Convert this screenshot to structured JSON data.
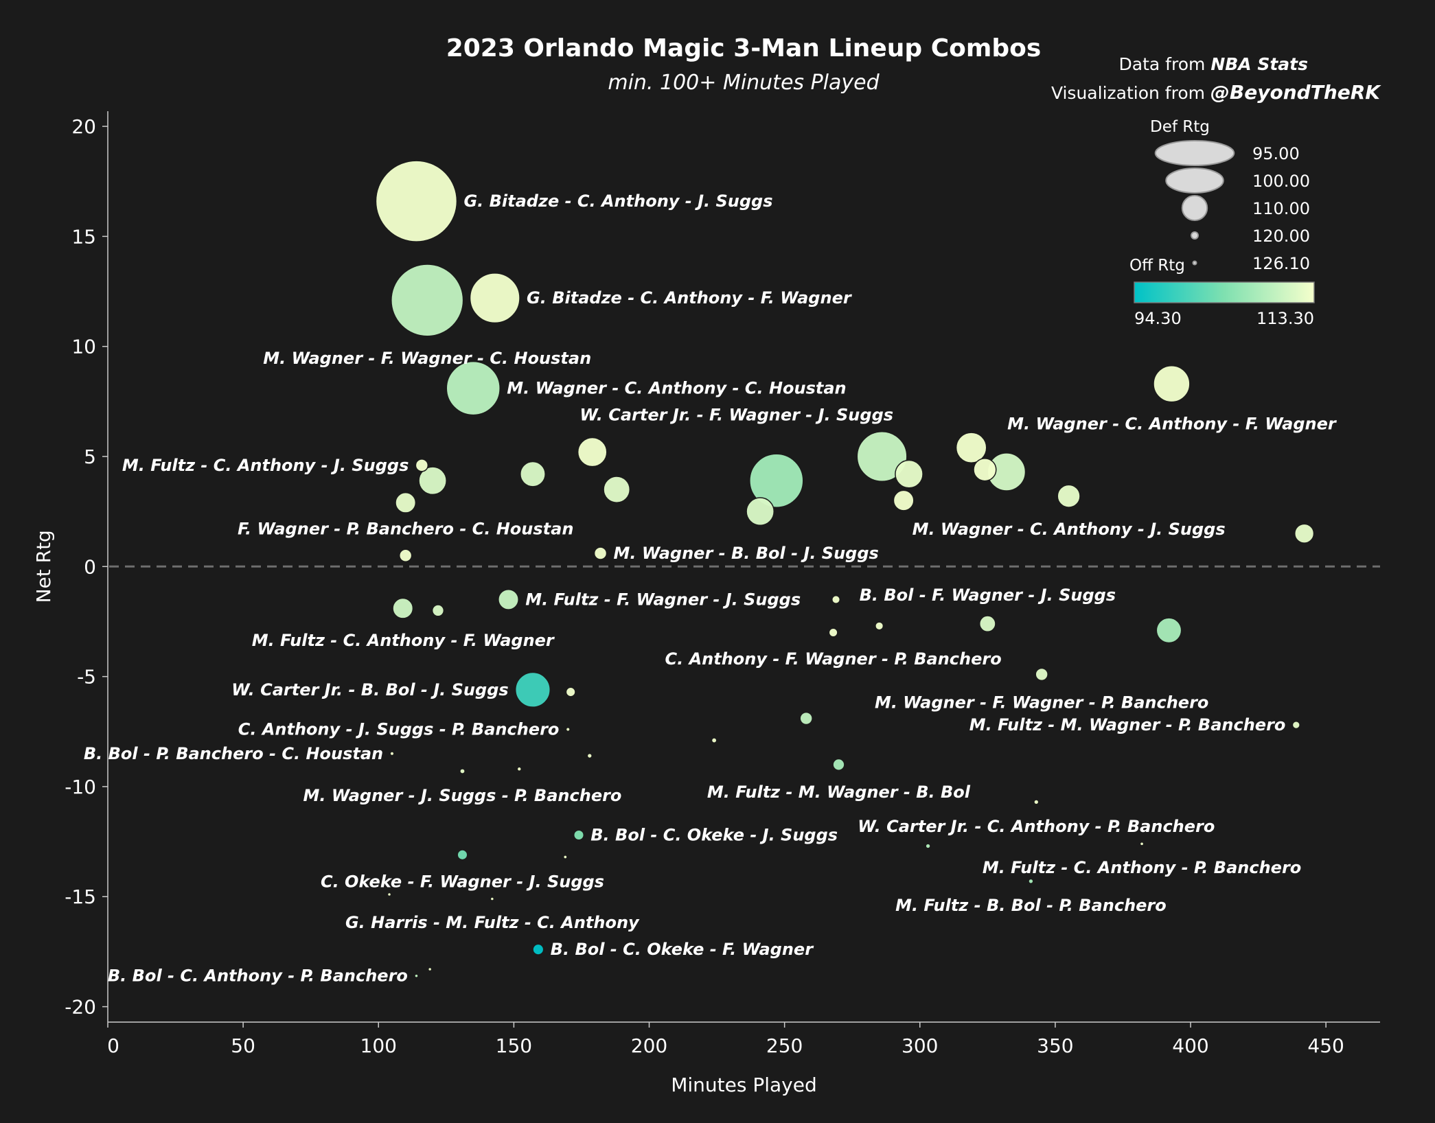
{
  "chart_data": {
    "type": "scatter",
    "title": "2023 Orlando Magic 3-Man Lineup Combos",
    "subtitle": "min. 100+ Minutes Played",
    "credits": {
      "data_prefix": "Data from ",
      "data_source": "NBA Stats",
      "viz_prefix": "Visualization from ",
      "viz_author": "@BeyondTheRK"
    },
    "xlabel": "Minutes Played",
    "ylabel": "Net Rtg",
    "xlim": [
      0,
      470
    ],
    "ylim": [
      -20.7,
      21
    ],
    "xticks": [
      0,
      50,
      100,
      150,
      200,
      250,
      300,
      350,
      400,
      450
    ],
    "yticks": [
      20,
      15,
      10,
      5,
      0,
      -5,
      -10,
      -15,
      -20
    ],
    "xtick_labels": [
      "0",
      "50",
      "100",
      "150",
      "200",
      "250",
      "300",
      "350",
      "400",
      "450"
    ],
    "ytick_labels": [
      "20",
      "15",
      "10",
      "5",
      "0",
      "-5",
      "-10",
      "-15",
      "-20"
    ],
    "zero_line": "dashed",
    "size_legend": {
      "title": "Def Rtg",
      "values": [
        95.0,
        100.0,
        110.0,
        120.0,
        126.1
      ],
      "labels": [
        "95.00",
        "100.00",
        "110.00",
        "120.00",
        "126.10"
      ]
    },
    "color_legend": {
      "title": "Off Rtg",
      "min": 94.3,
      "max": 113.3,
      "min_label": "94.30",
      "max_label": "113.30",
      "colors": [
        "#00c2c7",
        "#f5ffcc"
      ]
    },
    "points": [
      {
        "x": 114,
        "y": 16.6,
        "def": 94.5,
        "off": 113.0,
        "label": "G. Bitadze - C. Anthony - J. Suggs",
        "side": "right"
      },
      {
        "x": 118,
        "y": 12.1,
        "def": 96.5,
        "off": 109.0,
        "label": "M. Wagner - F. Wagner - C. Houstan",
        "side": "below"
      },
      {
        "x": 143,
        "y": 12.2,
        "def": 102.0,
        "off": 113.0,
        "label": "G. Bitadze - C. Anthony - F. Wagner",
        "side": "right"
      },
      {
        "x": 135,
        "y": 8.1,
        "def": 101.0,
        "off": 108.5,
        "label": "M. Wagner - C. Anthony - C. Houstan",
        "side": "right"
      },
      {
        "x": 393,
        "y": 8.3,
        "def": 106.0,
        "off": 113.0,
        "label": "M. Wagner - C. Anthony - F. Wagner",
        "side": "below"
      },
      {
        "x": 179,
        "y": 5.2,
        "def": 108.5,
        "off": 113.0,
        "label": "W. Carter Jr. - F. Wagner - J. Suggs",
        "side": "aboveright"
      },
      {
        "x": 116,
        "y": 4.6,
        "def": 116.0,
        "off": 113.0,
        "label": "M. Fultz - C. Anthony - J. Suggs",
        "side": "left"
      },
      {
        "x": 120,
        "y": 3.9,
        "def": 109.0,
        "off": 111.0,
        "label": "",
        "side": "none"
      },
      {
        "x": 157,
        "y": 4.2,
        "def": 110.0,
        "off": 111.0,
        "label": "",
        "side": "none"
      },
      {
        "x": 188,
        "y": 3.5,
        "def": 109.5,
        "off": 111.5,
        "label": "",
        "side": "none"
      },
      {
        "x": 247,
        "y": 3.9,
        "def": 101.0,
        "off": 106.5,
        "label": "",
        "side": "none"
      },
      {
        "x": 286,
        "y": 5.0,
        "def": 102.0,
        "off": 109.5,
        "label": "",
        "side": "none"
      },
      {
        "x": 296,
        "y": 4.2,
        "def": 109.0,
        "off": 112.0,
        "label": "",
        "side": "none"
      },
      {
        "x": 319,
        "y": 5.4,
        "def": 108.0,
        "off": 113.0,
        "label": "",
        "side": "none"
      },
      {
        "x": 324,
        "y": 4.4,
        "def": 111.0,
        "off": 113.0,
        "label": "",
        "side": "none"
      },
      {
        "x": 332,
        "y": 4.3,
        "def": 105.5,
        "off": 110.5,
        "label": "",
        "side": "none"
      },
      {
        "x": 355,
        "y": 3.2,
        "def": 111.0,
        "off": 112.0,
        "label": "M. Wagner - C. Anthony - J. Suggs",
        "side": "below"
      },
      {
        "x": 110,
        "y": 2.9,
        "def": 112.0,
        "off": 112.0,
        "label": "",
        "side": "none"
      },
      {
        "x": 241,
        "y": 2.5,
        "def": 109.0,
        "off": 111.0,
        "label": "",
        "side": "none"
      },
      {
        "x": 294,
        "y": 3.0,
        "def": 112.0,
        "off": 113.0,
        "label": "",
        "side": "none"
      },
      {
        "x": 442,
        "y": 1.5,
        "def": 112.5,
        "off": 112.0,
        "label": "",
        "side": "none"
      },
      {
        "x": 110,
        "y": 0.5,
        "def": 116.0,
        "off": 113.0,
        "label": "F. Wagner - P. Banchero - C. Houstan",
        "side": "above"
      },
      {
        "x": 182,
        "y": 0.6,
        "def": 116.0,
        "off": 113.0,
        "label": "M. Wagner - B. Bol - J. Suggs",
        "side": "right"
      },
      {
        "x": 109,
        "y": -1.9,
        "def": 112.0,
        "off": 110.0,
        "label": "M. Fultz - C. Anthony - F. Wagner",
        "side": "below"
      },
      {
        "x": 122,
        "y": -2.0,
        "def": 116.5,
        "off": 111.0,
        "label": "",
        "side": "none"
      },
      {
        "x": 148,
        "y": -1.5,
        "def": 112.0,
        "off": 109.5,
        "label": "M. Fultz - F. Wagner - J. Suggs",
        "side": "right"
      },
      {
        "x": 269,
        "y": -1.5,
        "def": 119.0,
        "off": 113.0,
        "label": "",
        "side": "none"
      },
      {
        "x": 268,
        "y": -3.0,
        "def": 118.5,
        "off": 113.0,
        "label": "C. Anthony - F. Wagner - P. Banchero",
        "side": "below"
      },
      {
        "x": 285,
        "y": -2.7,
        "def": 119.0,
        "off": 113.0,
        "label": "",
        "side": "none"
      },
      {
        "x": 325,
        "y": -2.6,
        "def": 114.0,
        "off": 111.0,
        "label": "B. Bol - F. Wagner - J. Suggs",
        "side": "above"
      },
      {
        "x": 392,
        "y": -2.9,
        "def": 110.0,
        "off": 107.0,
        "label": "",
        "side": "none"
      },
      {
        "x": 345,
        "y": -4.9,
        "def": 116.0,
        "off": 111.5,
        "label": "M. Wagner - F. Wagner - P. Banchero",
        "side": "below"
      },
      {
        "x": 157,
        "y": -5.6,
        "def": 106.5,
        "off": 99.0,
        "label": "W. Carter Jr. - B. Bol - J. Suggs",
        "side": "left"
      },
      {
        "x": 171,
        "y": -5.7,
        "def": 118.0,
        "off": 113.0,
        "label": "",
        "side": "none"
      },
      {
        "x": 258,
        "y": -6.9,
        "def": 116.0,
        "off": 109.0,
        "label": "",
        "side": "none"
      },
      {
        "x": 439,
        "y": -7.2,
        "def": 119.5,
        "off": 112.0,
        "label": "M. Fultz - M. Wagner - P. Banchero",
        "side": "left"
      },
      {
        "x": 170,
        "y": -7.4,
        "def": 124.0,
        "off": 113.0,
        "label": "C. Anthony - J. Suggs - P. Banchero",
        "side": "left"
      },
      {
        "x": 224,
        "y": -7.9,
        "def": 122.0,
        "off": 113.0,
        "label": "",
        "side": "none"
      },
      {
        "x": 105,
        "y": -8.5,
        "def": 124.0,
        "off": 113.0,
        "label": "B. Bol - P. Banchero - C. Houstan",
        "side": "left"
      },
      {
        "x": 178,
        "y": -8.6,
        "def": 122.5,
        "off": 113.0,
        "label": "",
        "side": "none"
      },
      {
        "x": 270,
        "y": -9.0,
        "def": 116.5,
        "off": 107.0,
        "label": "M. Fultz - M. Wagner - B. Bol",
        "side": "below"
      },
      {
        "x": 131,
        "y": -9.3,
        "def": 122.0,
        "off": 112.0,
        "label": "M. Wagner - J. Suggs - P. Banchero",
        "side": "below"
      },
      {
        "x": 152,
        "y": -9.2,
        "def": 123.5,
        "off": 113.0,
        "label": "",
        "side": "none"
      },
      {
        "x": 343,
        "y": -10.7,
        "def": 122.5,
        "off": 113.0,
        "label": "W. Carter Jr. - C. Anthony - P. Banchero",
        "side": "below"
      },
      {
        "x": 174,
        "y": -12.2,
        "def": 117.5,
        "off": 104.0,
        "label": "B. Bol - C. Okeke - J. Suggs",
        "side": "right"
      },
      {
        "x": 131,
        "y": -13.1,
        "def": 117.5,
        "off": 103.0,
        "label": "C. Okeke - F. Wagner - J. Suggs",
        "side": "below"
      },
      {
        "x": 169,
        "y": -13.2,
        "def": 125.0,
        "off": 113.0,
        "label": "",
        "side": "none"
      },
      {
        "x": 303,
        "y": -12.7,
        "def": 122.5,
        "off": 108.0,
        "label": "",
        "side": "none"
      },
      {
        "x": 382,
        "y": -12.6,
        "def": 125.0,
        "off": 113.0,
        "label": "M. Fultz - C. Anthony - P. Banchero",
        "side": "below"
      },
      {
        "x": 341,
        "y": -14.3,
        "def": 122.5,
        "off": 107.0,
        "label": "M. Fultz - B. Bol - P. Banchero",
        "side": "below"
      },
      {
        "x": 104,
        "y": -14.9,
        "def": 126.0,
        "off": 113.0,
        "label": "",
        "side": "none"
      },
      {
        "x": 142,
        "y": -15.1,
        "def": 126.0,
        "off": 113.0,
        "label": "G. Harris - M. Fultz - C. Anthony",
        "side": "below"
      },
      {
        "x": 159,
        "y": -17.4,
        "def": 117.0,
        "off": 94.3,
        "label": "B. Bol - C. Okeke - F. Wagner",
        "side": "right"
      },
      {
        "x": 114,
        "y": -18.6,
        "def": 125.5,
        "off": 109.0,
        "label": "B. Bol - C. Anthony - P. Banchero",
        "side": "left"
      },
      {
        "x": 119,
        "y": -18.3,
        "def": 126.0,
        "off": 113.0,
        "label": "",
        "side": "none"
      }
    ]
  }
}
